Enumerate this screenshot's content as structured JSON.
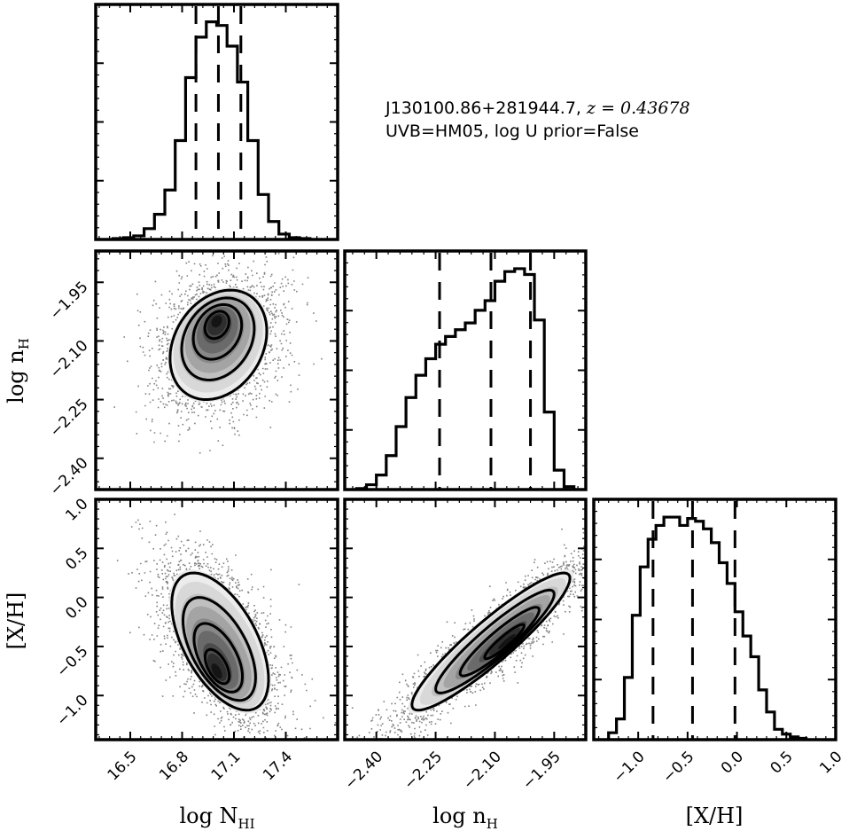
{
  "annotation": {
    "line1_prefix": "J130100.86+281944.7, ",
    "line1_math": "z = 0.43678",
    "line2": "UVB=HM05, log U prior=False"
  },
  "chart_data": [
    {
      "type": "histogram",
      "variable": "logNHI",
      "xlim": [
        16.3,
        17.7
      ],
      "bin_edges": [
        16.4,
        16.46,
        16.52,
        16.58,
        16.64,
        16.7,
        16.76,
        16.82,
        16.88,
        16.94,
        17.0,
        17.06,
        17.12,
        17.18,
        17.24,
        17.3,
        17.36,
        17.42,
        17.48,
        17.54
      ],
      "counts": [
        1,
        2,
        4,
        12,
        28,
        55,
        110,
        180,
        225,
        242,
        238,
        215,
        175,
        110,
        50,
        20,
        6,
        2,
        1
      ],
      "quantiles": [
        16.88,
        17.01,
        17.14
      ]
    },
    {
      "type": "histogram",
      "variable": "lognH",
      "xlim": [
        -2.48,
        -1.87
      ],
      "bin_edges": [
        -2.45,
        -2.425,
        -2.4,
        -2.375,
        -2.35,
        -2.325,
        -2.3,
        -2.275,
        -2.25,
        -2.225,
        -2.2,
        -2.175,
        -2.15,
        -2.125,
        -2.1,
        -2.075,
        -2.05,
        -2.025,
        -2.0,
        -1.975,
        -1.95,
        -1.925,
        -1.9
      ],
      "counts": [
        1,
        5,
        15,
        35,
        65,
        95,
        118,
        135,
        150,
        158,
        165,
        172,
        185,
        195,
        215,
        225,
        228,
        222,
        175,
        80,
        20,
        3
      ],
      "quantiles": [
        -2.24,
        -2.11,
        -2.01
      ]
    },
    {
      "type": "histogram",
      "variable": "X/H",
      "xlim": [
        -1.45,
        1.0
      ],
      "bin_edges": [
        -1.3,
        -1.22,
        -1.14,
        -1.06,
        -0.98,
        -0.9,
        -0.82,
        -0.74,
        -0.66,
        -0.58,
        -0.5,
        -0.42,
        -0.34,
        -0.26,
        -0.18,
        -0.1,
        -0.02,
        0.06,
        0.14,
        0.22,
        0.3,
        0.38,
        0.46,
        0.54,
        0.62,
        0.7
      ],
      "counts": [
        10,
        30,
        90,
        180,
        250,
        290,
        310,
        322,
        322,
        310,
        320,
        316,
        305,
        285,
        256,
        226,
        185,
        150,
        120,
        72,
        40,
        15,
        8,
        4,
        2
      ],
      "quantiles": [
        -0.85,
        -0.45,
        -0.02
      ]
    },
    {
      "type": "scatter-density",
      "x": "logNHI",
      "y": "lognH",
      "xlim": [
        16.3,
        17.7
      ],
      "ylim": [
        -2.48,
        -1.87
      ],
      "centre": [
        17.01,
        -2.11
      ],
      "peak": [
        17.0,
        -2.05
      ],
      "spread": [
        0.14,
        0.07
      ],
      "rho": 0.25
    },
    {
      "type": "scatter-density",
      "x": "logNHI",
      "y": "X/H",
      "xlim": [
        16.3,
        17.7
      ],
      "ylim": [
        -1.45,
        1.0
      ],
      "centre": [
        17.02,
        -0.45
      ],
      "peak": [
        17.0,
        -0.75
      ],
      "spread": [
        0.14,
        0.35
      ],
      "rho": -0.55
    },
    {
      "type": "scatter-density",
      "x": "lognH",
      "y": "X/H",
      "xlim": [
        -2.48,
        -1.87
      ],
      "ylim": [
        -1.45,
        1.0
      ],
      "centre": [
        -2.11,
        -0.45
      ],
      "peak": [
        -2.07,
        -0.45
      ],
      "spread": [
        0.1,
        0.35
      ],
      "rho": 0.92
    }
  ],
  "axes": {
    "logNHI": {
      "ticks": [
        {
          "value": 16.5,
          "label": "16.5"
        },
        {
          "value": 16.8,
          "label": "16.8"
        },
        {
          "value": 17.1,
          "label": "17.1"
        },
        {
          "value": 17.4,
          "label": "17.4"
        }
      ],
      "label_main": "log N",
      "label_sub": "HI"
    },
    "lognH": {
      "ticks": [
        {
          "value": -2.4,
          "label": "−2.40"
        },
        {
          "value": -2.25,
          "label": "−2.25"
        },
        {
          "value": -2.1,
          "label": "−2.10"
        },
        {
          "value": -1.95,
          "label": "−1.95"
        }
      ],
      "label_main": "log n",
      "label_sub": "H"
    },
    "X/H": {
      "ticks": [
        {
          "value": -1.0,
          "label": "−1.0"
        },
        {
          "value": -0.5,
          "label": "−0.5"
        },
        {
          "value": 0.0,
          "label": "0.0"
        },
        {
          "value": 0.5,
          "label": "0.5"
        },
        {
          "value": 1.0,
          "label": "1.0"
        }
      ],
      "label_main": "[X/H]",
      "label_sub": ""
    }
  },
  "colors": {
    "line": "#000000",
    "density_levels": [
      "#ececec",
      "#d8d8d8",
      "#c0c0c0",
      "#a4a4a4",
      "#888888",
      "#6a6a6a",
      "#4c4c4c",
      "#2e2e2e",
      "#141414"
    ],
    "points": "#1a1a1a"
  }
}
